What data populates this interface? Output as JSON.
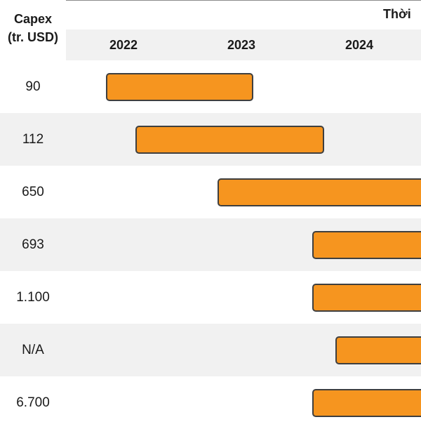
{
  "chart_data": {
    "type": "gantt",
    "ylabel": [
      "Capex",
      "(tr. USD)"
    ],
    "xlabel": "Thời",
    "years": [
      "2022",
      "2023",
      "2024"
    ],
    "accent_color": "#f6951f",
    "rows": [
      {
        "capex": "90",
        "start": 2021.85,
        "end": 2023.1
      },
      {
        "capex": "112",
        "start": 2022.1,
        "end": 2023.7
      },
      {
        "capex": "650",
        "start": 2022.8,
        "end": null
      },
      {
        "capex": "693",
        "start": 2023.6,
        "end": null
      },
      {
        "capex": "1.100",
        "start": 2023.6,
        "end": null
      },
      {
        "capex": "N/A",
        "start": 2023.8,
        "end": null
      },
      {
        "capex": "6.700",
        "start": 2023.6,
        "end": null
      }
    ]
  }
}
